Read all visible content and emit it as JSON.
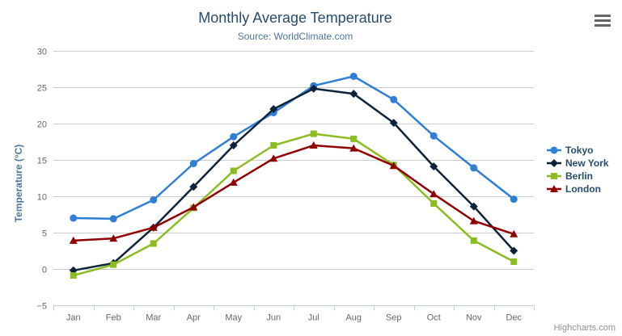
{
  "chart": {
    "title": "Monthly Average Temperature",
    "subtitle": "Source: WorldClimate.com",
    "y_axis_title": "Temperature (°C)",
    "credits": "Highcharts.com",
    "context_menu_icon": "hamburger-icon"
  },
  "chart_data": {
    "type": "line",
    "title": "Monthly Average Temperature",
    "subtitle": "Source: WorldClimate.com",
    "xlabel": "",
    "ylabel": "Temperature (°C)",
    "categories": [
      "Jan",
      "Feb",
      "Mar",
      "Apr",
      "May",
      "Jun",
      "Jul",
      "Aug",
      "Sep",
      "Oct",
      "Nov",
      "Dec"
    ],
    "series": [
      {
        "name": "Tokyo",
        "color": "#2f7ed8",
        "marker": "circle",
        "values": [
          7.0,
          6.9,
          9.5,
          14.5,
          18.2,
          21.5,
          25.2,
          26.5,
          23.3,
          18.3,
          13.9,
          9.6
        ]
      },
      {
        "name": "New York",
        "color": "#0d233a",
        "marker": "diamond",
        "values": [
          -0.2,
          0.8,
          5.7,
          11.3,
          17.0,
          22.0,
          24.8,
          24.1,
          20.1,
          14.1,
          8.6,
          2.5
        ]
      },
      {
        "name": "Berlin",
        "color": "#8bbc21",
        "marker": "square",
        "values": [
          -0.9,
          0.6,
          3.5,
          8.4,
          13.5,
          17.0,
          18.6,
          17.9,
          14.3,
          9.0,
          3.9,
          1.0
        ]
      },
      {
        "name": "London",
        "color": "#910000",
        "marker": "triangle",
        "values": [
          3.9,
          4.2,
          5.7,
          8.5,
          11.9,
          15.2,
          17.0,
          16.6,
          14.2,
          10.3,
          6.6,
          4.8
        ]
      }
    ],
    "ylim": [
      -5,
      30
    ],
    "ytick_step": 5,
    "yticks": [
      -5,
      0,
      5,
      10,
      15,
      20,
      25,
      30
    ],
    "grid": true,
    "legend_position": "right",
    "colors": {
      "grid_line": "#cccccc",
      "axis_line": "#c0d0e0",
      "tick_label": "#666666",
      "title": "#274b6d",
      "subtitle": "#4d759e",
      "axis_title": "#4d759e"
    }
  }
}
